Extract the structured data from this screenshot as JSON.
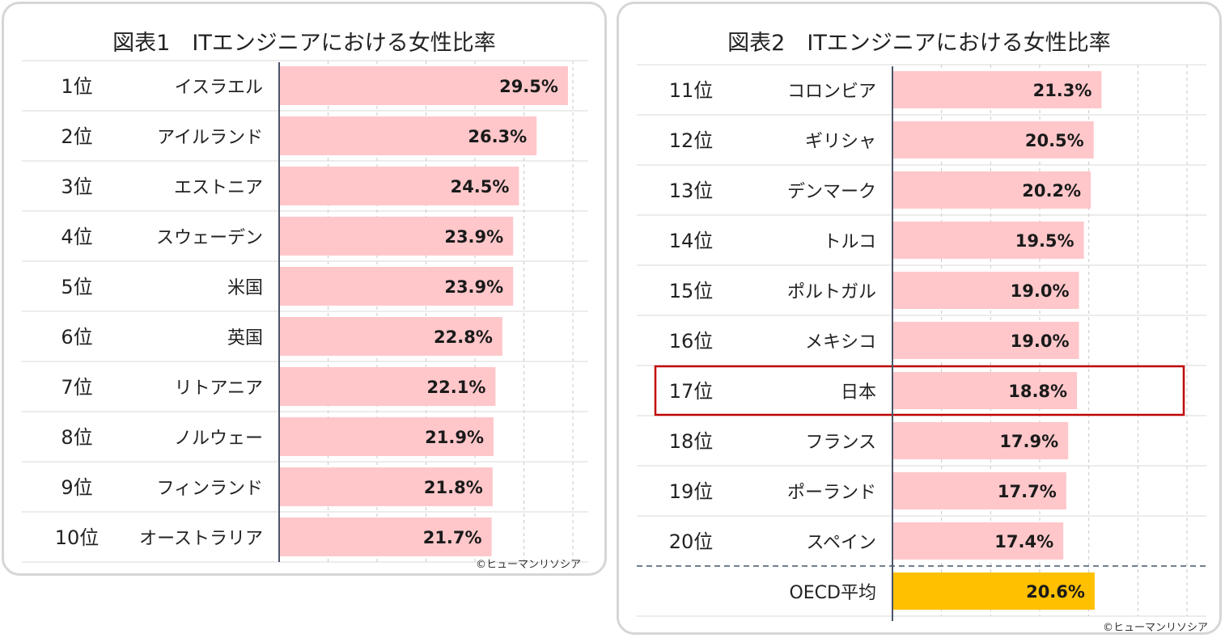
{
  "colors": {
    "bar": "#ffc7ca",
    "oecd_bar": "#ffc000",
    "highlight_border": "#c00000",
    "axis": "#4a5568",
    "row_line": "#d9d9d9",
    "grid": "#c8c8c8",
    "panel_border": "#d6d6d6"
  },
  "chart_data": [
    {
      "type": "bar",
      "orientation": "horizontal",
      "title": "図表1　ITエンジニアにおける女性比率",
      "copyright": "©ヒューマンリソシア",
      "xlim": [
        0,
        30
      ],
      "grid": "vertical dashed",
      "rows": [
        {
          "rank": "1位",
          "country": "イスラエル",
          "value": 29.5,
          "label": "29.5%"
        },
        {
          "rank": "2位",
          "country": "アイルランド",
          "value": 26.3,
          "label": "26.3%"
        },
        {
          "rank": "3位",
          "country": "エストニア",
          "value": 24.5,
          "label": "24.5%"
        },
        {
          "rank": "4位",
          "country": "スウェーデン",
          "value": 23.9,
          "label": "23.9%"
        },
        {
          "rank": "5位",
          "country": "米国",
          "value": 23.9,
          "label": "23.9%"
        },
        {
          "rank": "6位",
          "country": "英国",
          "value": 22.8,
          "label": "22.8%"
        },
        {
          "rank": "7位",
          "country": "リトアニア",
          "value": 22.1,
          "label": "22.1%"
        },
        {
          "rank": "8位",
          "country": "ノルウェー",
          "value": 21.9,
          "label": "21.9%"
        },
        {
          "rank": "9位",
          "country": "フィンランド",
          "value": 21.8,
          "label": "21.8%"
        },
        {
          "rank": "10位",
          "country": "オーストラリア",
          "value": 21.7,
          "label": "21.7%"
        }
      ]
    },
    {
      "type": "bar",
      "orientation": "horizontal",
      "title": "図表2　ITエンジニアにおける女性比率",
      "copyright": "©ヒューマンリソシア",
      "xlim": [
        0,
        30
      ],
      "grid": "vertical dashed",
      "highlight_country": "日本",
      "rows": [
        {
          "rank": "11位",
          "country": "コロンビア",
          "value": 21.3,
          "label": "21.3%"
        },
        {
          "rank": "12位",
          "country": "ギリシャ",
          "value": 20.5,
          "label": "20.5%"
        },
        {
          "rank": "13位",
          "country": "デンマーク",
          "value": 20.2,
          "label": "20.2%"
        },
        {
          "rank": "14位",
          "country": "トルコ",
          "value": 19.5,
          "label": "19.5%"
        },
        {
          "rank": "15位",
          "country": "ポルトガル",
          "value": 19.0,
          "label": "19.0%"
        },
        {
          "rank": "16位",
          "country": "メキシコ",
          "value": 19.0,
          "label": "19.0%"
        },
        {
          "rank": "17位",
          "country": "日本",
          "value": 18.8,
          "label": "18.8%"
        },
        {
          "rank": "18位",
          "country": "フランス",
          "value": 17.9,
          "label": "17.9%"
        },
        {
          "rank": "19位",
          "country": "ポーランド",
          "value": 17.7,
          "label": "17.7%"
        },
        {
          "rank": "20位",
          "country": "スペイン",
          "value": 17.4,
          "label": "17.4%"
        }
      ],
      "average": {
        "rank": "",
        "country": "OECD平均",
        "value": 20.6,
        "label": "20.6%"
      }
    }
  ]
}
